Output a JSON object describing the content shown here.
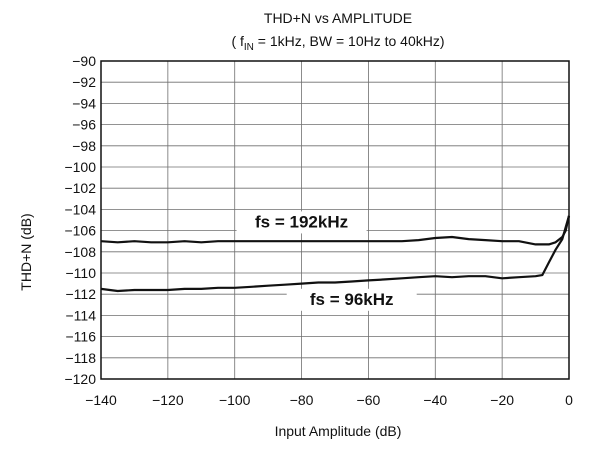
{
  "chart_data": {
    "type": "line",
    "title": "THD+N vs AMPLITUDE",
    "subtitle": {
      "prefix": "( f",
      "sub": "IN",
      "rest": " = 1kHz, BW = 10Hz to 40kHz)"
    },
    "xlabel": "Input Amplitude (dB)",
    "ylabel": "THD+N (dB)",
    "xlim": [
      -140,
      0
    ],
    "ylim": [
      -120,
      -90
    ],
    "x_ticks": [
      -140,
      -120,
      -100,
      -80,
      -60,
      -40,
      -20,
      0
    ],
    "x_tick_labels": [
      "−140",
      "−120",
      "−100",
      "−80",
      "−60",
      "−40",
      "−20",
      "0"
    ],
    "y_ticks": [
      -90,
      -92,
      -94,
      -96,
      -98,
      -100,
      -102,
      -104,
      -106,
      -108,
      -110,
      -112,
      -114,
      -116,
      -118,
      -120
    ],
    "y_tick_labels": [
      "−90",
      "−92",
      "−94",
      "−96",
      "−98",
      "−100",
      "−102",
      "−104",
      "−106",
      "−108",
      "−110",
      "−112",
      "−114",
      "−116",
      "−118",
      "−120"
    ],
    "grid": true,
    "series": [
      {
        "name": "fs = 192kHz",
        "x": [
          -140,
          -135,
          -130,
          -125,
          -120,
          -115,
          -110,
          -105,
          -100,
          -95,
          -90,
          -85,
          -80,
          -75,
          -70,
          -65,
          -60,
          -55,
          -50,
          -45,
          -40,
          -35,
          -30,
          -25,
          -20,
          -15,
          -10,
          -6,
          -4,
          -2,
          -1,
          0
        ],
        "y": [
          -107.0,
          -107.1,
          -107.0,
          -107.1,
          -107.1,
          -107.0,
          -107.1,
          -107.0,
          -107.0,
          -107.0,
          -107.0,
          -107.0,
          -107.0,
          -107.0,
          -107.0,
          -107.0,
          -107.0,
          -107.0,
          -107.0,
          -106.9,
          -106.7,
          -106.6,
          -106.8,
          -106.9,
          -107.0,
          -107.0,
          -107.3,
          -107.3,
          -107.1,
          -106.6,
          -106.0,
          -104.6
        ]
      },
      {
        "name": "fs = 96kHz",
        "x": [
          -140,
          -135,
          -130,
          -125,
          -120,
          -115,
          -110,
          -105,
          -100,
          -95,
          -90,
          -85,
          -80,
          -75,
          -70,
          -65,
          -60,
          -55,
          -50,
          -45,
          -40,
          -35,
          -30,
          -25,
          -20,
          -15,
          -10,
          -8,
          -6,
          -4,
          -2,
          0
        ],
        "y": [
          -111.5,
          -111.7,
          -111.6,
          -111.6,
          -111.6,
          -111.5,
          -111.5,
          -111.4,
          -111.4,
          -111.3,
          -111.2,
          -111.1,
          -111.0,
          -110.9,
          -110.9,
          -110.8,
          -110.7,
          -110.6,
          -110.5,
          -110.4,
          -110.3,
          -110.4,
          -110.3,
          -110.3,
          -110.5,
          -110.4,
          -110.3,
          -110.2,
          -109.0,
          -107.8,
          -106.8,
          -104.6
        ]
      }
    ],
    "annotations": [
      {
        "text": "fs = 192kHz",
        "series": 0,
        "x": -80,
        "y": -105.7
      },
      {
        "text": "fs = 96kHz",
        "series": 1,
        "x": -65,
        "y": -113.0
      }
    ]
  }
}
